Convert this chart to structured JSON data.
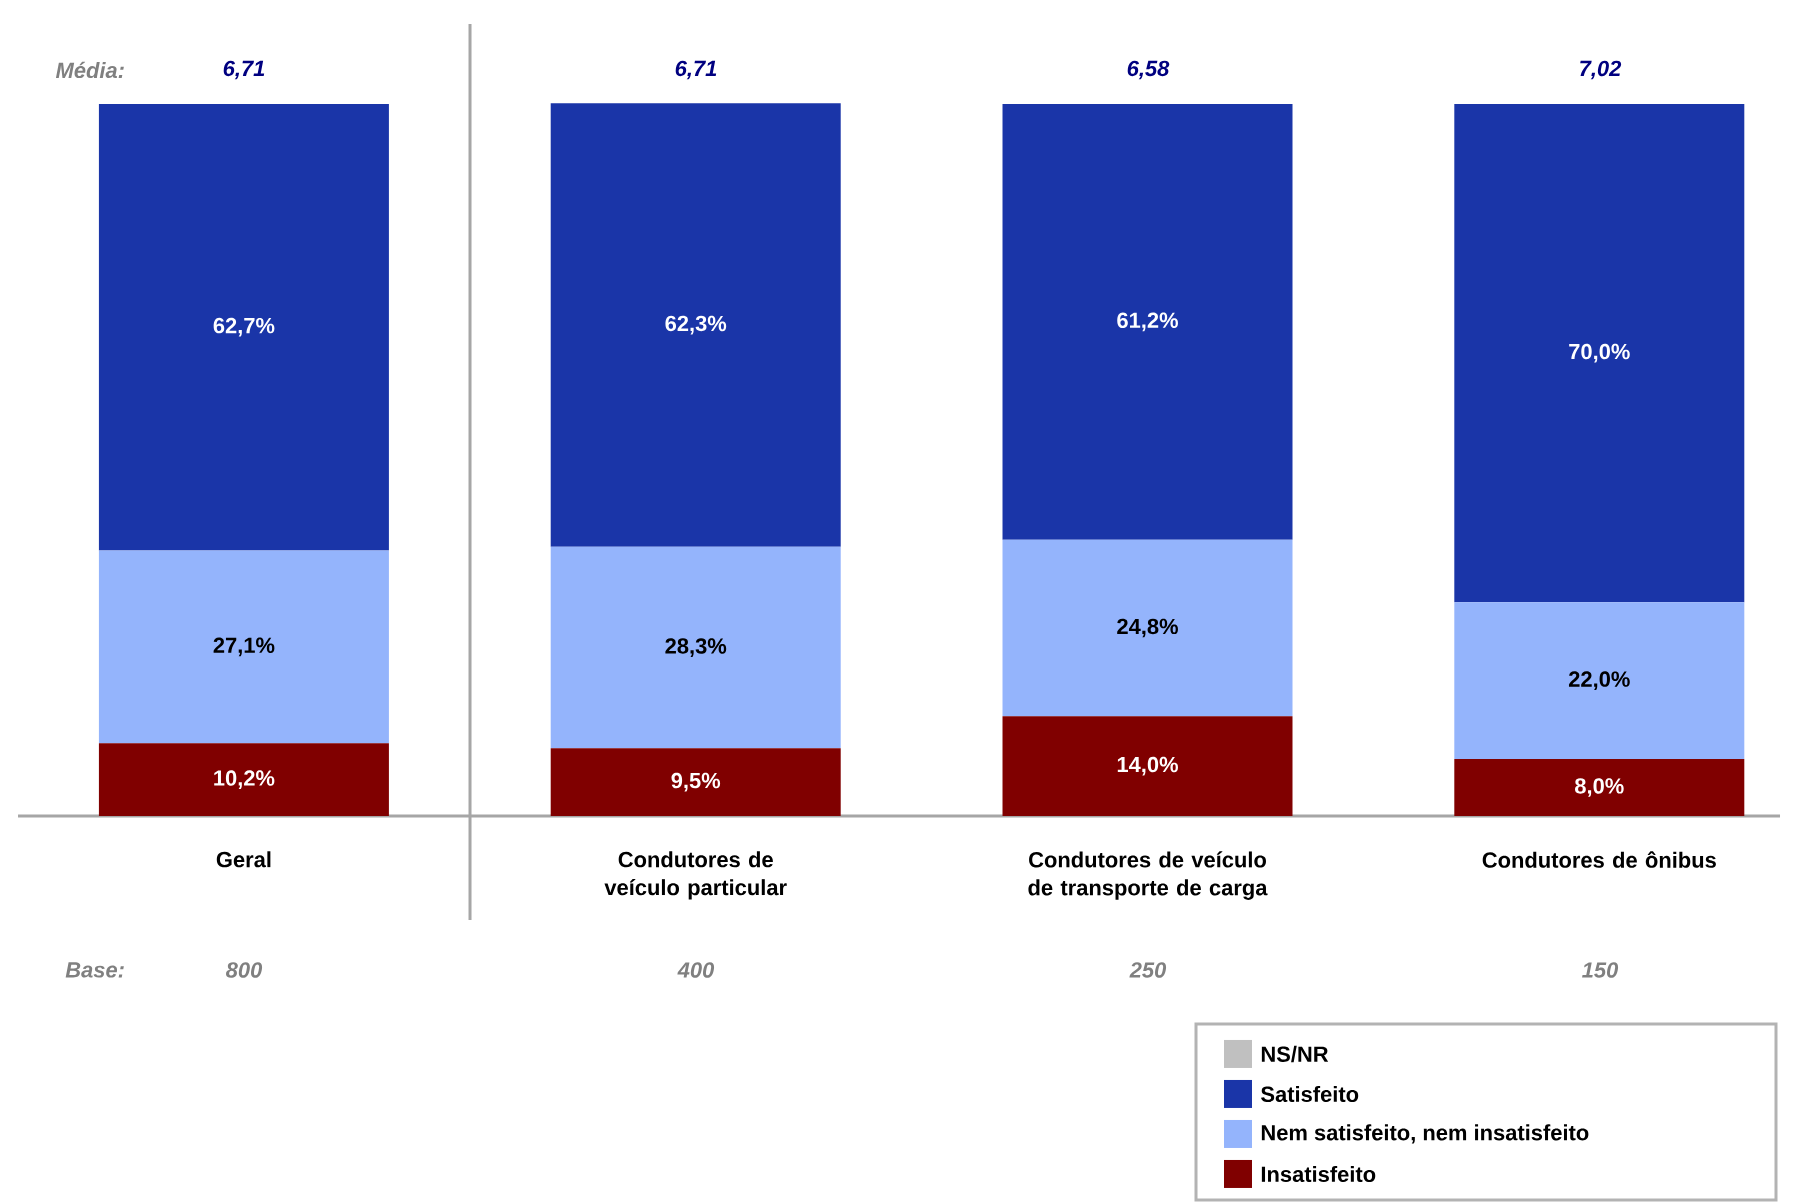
{
  "chart_data": {
    "type": "bar",
    "stacked": true,
    "categories": [
      "Geral",
      "Condutores de veículo particular",
      "Condutores de veículo de transporte de carga",
      "Condutores de ônibus"
    ],
    "series": [
      {
        "name": "Insatisfeito",
        "color": "#800000",
        "values": [
          10.2,
          9.5,
          14.0,
          8.0
        ],
        "value_labels": [
          "10,2%",
          "9,5%",
          "14,0%",
          "8,0%"
        ]
      },
      {
        "name": "Nem satisfeito, nem insatisfeito",
        "color": "#94b4fc",
        "values": [
          27.1,
          28.3,
          24.8,
          22.0
        ],
        "value_labels": [
          "27,1%",
          "28,3%",
          "24,8%",
          "22,0%"
        ]
      },
      {
        "name": "Satisfeito",
        "color": "#1a35a8",
        "values": [
          62.7,
          62.3,
          61.2,
          70.0
        ],
        "value_labels": [
          "62,7%",
          "62,3%",
          "61,2%",
          "70,0%"
        ]
      },
      {
        "name": "NS/NR",
        "color": "#c0c0c0",
        "values": [
          null,
          null,
          null,
          null
        ]
      }
    ],
    "ylim": [
      0,
      100
    ],
    "tick_labels": "x",
    "legend": "bottom right",
    "annotations": [
      "Média:",
      "6,71",
      "6,71",
      "6,58",
      "7,02",
      "Base:",
      "800",
      "400",
      "250",
      "150"
    ]
  }
}
